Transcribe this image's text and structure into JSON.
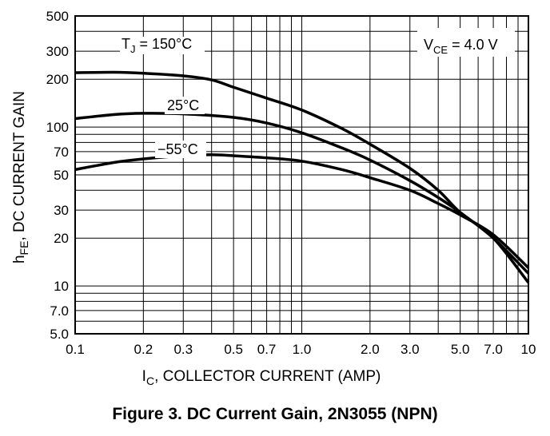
{
  "chart_data": {
    "type": "line",
    "title": "Figure 3. DC Current Gain, 2N3055 (NPN)",
    "xlabel": {
      "main": "I",
      "sub": "C",
      "rest": ", COLLECTOR CURRENT (AMP)"
    },
    "ylabel": {
      "main": "h",
      "sub": "FE",
      "rest": ", DC CURRENT GAIN"
    },
    "x_scale": "log",
    "y_scale": "log",
    "xlim": [
      0.1,
      10
    ],
    "ylim": [
      5,
      500
    ],
    "grid": true,
    "x_ticks": [
      {
        "value": 0.1,
        "label": "0.1"
      },
      {
        "value": 0.2,
        "label": "0.2"
      },
      {
        "value": 0.3,
        "label": "0.3"
      },
      {
        "value": 0.5,
        "label": "0.5"
      },
      {
        "value": 0.7,
        "label": "0.7"
      },
      {
        "value": 1.0,
        "label": "1.0"
      },
      {
        "value": 2.0,
        "label": "2.0"
      },
      {
        "value": 3.0,
        "label": "3.0"
      },
      {
        "value": 5.0,
        "label": "5.0"
      },
      {
        "value": 7.0,
        "label": "7.0"
      },
      {
        "value": 10,
        "label": "10"
      }
    ],
    "y_ticks": [
      {
        "value": 5,
        "label": "5.0"
      },
      {
        "value": 7,
        "label": "7.0"
      },
      {
        "value": 10,
        "label": "10"
      },
      {
        "value": 20,
        "label": "20"
      },
      {
        "value": 30,
        "label": "30"
      },
      {
        "value": 50,
        "label": "50"
      },
      {
        "value": 70,
        "label": "70"
      },
      {
        "value": 100,
        "label": "100"
      },
      {
        "value": 200,
        "label": "200"
      },
      {
        "value": 300,
        "label": "300"
      },
      {
        "value": 500,
        "label": "500"
      }
    ],
    "annotation": {
      "main": "V",
      "sub": "CE",
      "rest": " = 4.0 V"
    },
    "series": [
      {
        "label_main": "T",
        "label_sub": "J",
        "label_rest": " = 150°C",
        "x": [
          0.1,
          0.15,
          0.2,
          0.3,
          0.4,
          0.5,
          0.7,
          1.0,
          1.5,
          2.0,
          3.0,
          4.0,
          5.0,
          7.0,
          10
        ],
        "y": [
          220,
          221,
          218,
          210,
          198,
          178,
          152,
          128,
          98,
          78,
          55,
          40,
          29,
          20,
          10.5
        ]
      },
      {
        "label_main": "",
        "label_sub": "",
        "label_rest": "25°C",
        "x": [
          0.1,
          0.15,
          0.2,
          0.3,
          0.5,
          0.7,
          1.0,
          1.5,
          2.0,
          3.0,
          4.0,
          5.0,
          7.0,
          10
        ],
        "y": [
          113,
          120,
          122,
          121,
          115,
          106,
          92,
          74,
          62,
          46,
          36,
          29,
          20,
          12
        ]
      },
      {
        "label_main": "",
        "label_sub": "",
        "label_rest": "−55°C",
        "x": [
          0.1,
          0.15,
          0.2,
          0.3,
          0.4,
          0.5,
          0.7,
          1.0,
          1.5,
          2.0,
          3.0,
          4.0,
          5.0,
          7.0,
          10
        ],
        "y": [
          54,
          60,
          63,
          66,
          67,
          66,
          64,
          61,
          54,
          48,
          40,
          33,
          28,
          21,
          13
        ]
      }
    ]
  }
}
